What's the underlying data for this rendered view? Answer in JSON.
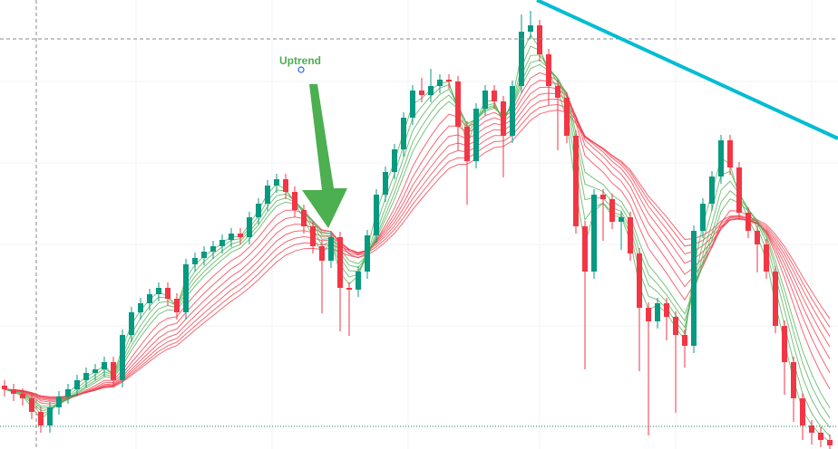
{
  "chart_data": {
    "type": "candlestick",
    "annotation": "Uptrend",
    "ylim": [
      0,
      496
    ],
    "up_color": "#089981",
    "down_color": "#f23645",
    "ma_short_periods": [
      2,
      3,
      4,
      5,
      6
    ],
    "ma_short_color": "#4caf50",
    "ma_long_periods": [
      8,
      10,
      12,
      14,
      16,
      18,
      20
    ],
    "ma_long_color": "#f23645",
    "open": [
      70,
      66,
      61,
      56,
      41,
      26,
      46,
      58,
      66,
      76,
      84,
      88,
      96,
      76,
      126,
      151,
      161,
      171,
      178,
      166,
      151,
      204,
      211,
      218,
      224,
      231,
      238,
      234,
      256,
      271,
      291,
      298,
      284,
      264,
      246,
      224,
      208,
      234,
      178,
      176,
      196,
      236,
      281,
      306,
      331,
      366,
      396,
      391,
      401,
      408,
      406,
      356,
      318,
      376,
      396,
      384,
      346,
      401,
      461,
      468,
      436,
      401,
      388,
      346,
      246,
      196,
      281,
      276,
      251,
      256,
      216,
      156,
      141,
      161,
      146,
      126,
      114,
      241,
      271,
      301,
      341,
      311,
      261,
      241,
      226,
      196,
      136,
      96,
      56,
      26,
      18,
      10
    ],
    "high": [
      76,
      72,
      67,
      62,
      47,
      52,
      64,
      72,
      82,
      90,
      94,
      102,
      102,
      132,
      157,
      167,
      177,
      184,
      184,
      172,
      210,
      217,
      224,
      230,
      237,
      244,
      244,
      262,
      277,
      297,
      304,
      304,
      290,
      270,
      252,
      230,
      240,
      240,
      184,
      202,
      242,
      287,
      312,
      337,
      372,
      402,
      410,
      420,
      414,
      414,
      412,
      362,
      382,
      402,
      402,
      390,
      407,
      480,
      484,
      474,
      442,
      407,
      394,
      352,
      252,
      287,
      287,
      282,
      262,
      262,
      222,
      162,
      167,
      167,
      152,
      132,
      247,
      277,
      307,
      347,
      347,
      317,
      267,
      247,
      232,
      202,
      142,
      102,
      62,
      32,
      24,
      16
    ],
    "low": [
      58,
      53,
      48,
      33,
      18,
      18,
      38,
      50,
      58,
      68,
      76,
      80,
      68,
      68,
      118,
      143,
      153,
      163,
      158,
      143,
      143,
      196,
      203,
      210,
      216,
      223,
      226,
      226,
      248,
      263,
      283,
      276,
      256,
      238,
      216,
      150,
      200,
      130,
      125,
      168,
      188,
      228,
      273,
      298,
      323,
      358,
      383,
      383,
      393,
      398,
      330,
      270,
      310,
      368,
      376,
      300,
      338,
      393,
      453,
      428,
      380,
      330,
      338,
      238,
      88,
      188,
      230,
      243,
      220,
      208,
      86,
      15,
      133,
      120,
      40,
      90,
      106,
      233,
      263,
      293,
      303,
      253,
      233,
      195,
      188,
      128,
      60,
      30,
      10,
      5,
      2,
      0
    ],
    "close": [
      66,
      61,
      56,
      41,
      26,
      46,
      58,
      66,
      76,
      84,
      88,
      96,
      76,
      126,
      151,
      161,
      171,
      178,
      166,
      151,
      204,
      211,
      218,
      224,
      231,
      238,
      234,
      256,
      271,
      291,
      298,
      284,
      264,
      246,
      224,
      208,
      234,
      178,
      176,
      196,
      236,
      281,
      306,
      331,
      366,
      396,
      391,
      401,
      408,
      406,
      356,
      318,
      376,
      396,
      384,
      346,
      401,
      461,
      468,
      436,
      401,
      388,
      346,
      246,
      196,
      281,
      276,
      251,
      256,
      216,
      156,
      141,
      161,
      146,
      126,
      114,
      241,
      271,
      301,
      341,
      311,
      261,
      241,
      226,
      196,
      136,
      96,
      56,
      26,
      18,
      10,
      4
    ]
  }
}
